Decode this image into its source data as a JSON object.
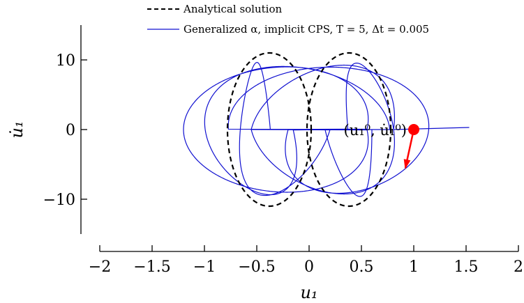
{
  "chart_data": {
    "type": "line",
    "title": "",
    "xlabel": "u₁",
    "ylabel": "u̇₁",
    "xlim": [
      -2,
      2
    ],
    "ylim": [
      -15,
      15
    ],
    "xticks": [
      -2,
      -1.5,
      -1,
      -0.5,
      0,
      0.5,
      1,
      1.5,
      2
    ],
    "yticks": [
      -10,
      0,
      10
    ],
    "x_tick_labels": [
      "−2",
      "−1.5",
      "−1",
      "−0.5",
      "0",
      "0.5",
      "1",
      "1.5",
      "2"
    ],
    "y_tick_labels": [
      "−10",
      "0",
      "10"
    ],
    "grid": false,
    "legend_position": "top",
    "legend": [
      {
        "label": "Analytical solution",
        "color": "#000000",
        "style": "dashed"
      },
      {
        "label": "Generalized α, implicit CPS, T = 5, Δt = 0.005",
        "color": "#1010d0",
        "style": "solid"
      }
    ],
    "series": [
      {
        "name": "Analytical solution",
        "model": "orbit",
        "envelope": "constant",
        "a_base": 0.4,
        "b_base": 0.4,
        "kx_base": 0.38,
        "ky_base": 11.0,
        "cycles": 2
      },
      {
        "name": "Generalized α, implicit CPS, T = 5, Δt = 0.005",
        "model": "orbit",
        "envelope": "oscillating",
        "a_base": 0.55,
        "a_amp": 0.45,
        "b_base": 0.45,
        "b_amp": 0.55,
        "kx_base": 0.35,
        "kx_amp": 0.25,
        "ky_base": 9.3,
        "ky_amp": 1.7,
        "envelope_freq": 0.3,
        "cycles": 6,
        "x_end": 1.53,
        "y_end": 0.3
      }
    ],
    "annotations": [
      {
        "text": "(u₁⁰, u̇₁⁰)",
        "point": [
          1.0,
          0.0
        ],
        "arrow_to": [
          0.92,
          -5.5
        ],
        "color": "#ff0000"
      }
    ],
    "colors": {
      "analytical": "#000000",
      "numerical": "#1010d0",
      "marker": "#ff0000"
    }
  }
}
